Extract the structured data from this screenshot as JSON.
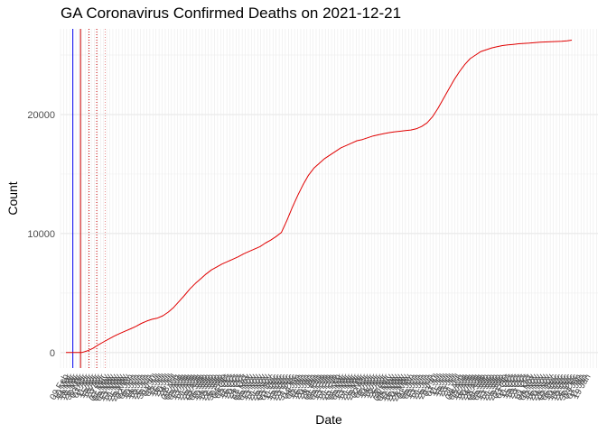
{
  "chart_data": {
    "type": "line",
    "title": "GA Coronavirus Confirmed Deaths on 2021-12-21",
    "xlabel": "Date",
    "ylabel": "Count",
    "x_type": "date",
    "xlim": [
      "2020-02-26",
      "2022-01-24"
    ],
    "ylim": [
      -1300,
      27200
    ],
    "y_ticks": [
      0,
      10000,
      20000
    ],
    "y_tick_labels": [
      "0",
      "10000",
      "20000"
    ],
    "grid": true,
    "legend": "none",
    "background": "#ffffff",
    "colors": {
      "line": "#e00000",
      "vline_solid": "#0000ee",
      "vline_ref": "#cc0000",
      "grid": "#ebebeb",
      "axis_text": "#4d4d4d"
    },
    "vlines": [
      {
        "date": "2020-03-13",
        "color": "#0000ee",
        "style": "solid"
      },
      {
        "date": "2020-03-23",
        "color": "#cc0000",
        "style": "solid"
      },
      {
        "date": "2020-04-03",
        "color": "#cc0000",
        "style": "dotted"
      },
      {
        "date": "2020-04-13",
        "color": "#cc0000",
        "style": "dotted"
      },
      {
        "date": "2020-04-24",
        "color": "#e88888",
        "style": "dotted"
      }
    ],
    "series": [
      {
        "x": [
          "2020-03-04",
          "2020-03-12",
          "2020-03-18",
          "2020-03-25",
          "2020-04-01",
          "2020-04-08",
          "2020-04-15",
          "2020-04-22",
          "2020-04-29",
          "2020-05-06",
          "2020-05-13",
          "2020-05-20",
          "2020-05-27",
          "2020-06-03",
          "2020-06-10",
          "2020-06-17",
          "2020-06-24",
          "2020-07-01",
          "2020-07-08",
          "2020-07-15",
          "2020-07-22",
          "2020-07-29",
          "2020-08-05",
          "2020-08-12",
          "2020-08-19",
          "2020-08-26",
          "2020-09-02",
          "2020-09-09",
          "2020-09-16",
          "2020-09-23",
          "2020-09-30",
          "2020-10-07",
          "2020-10-14",
          "2020-10-21",
          "2020-10-28",
          "2020-11-04",
          "2020-11-11",
          "2020-11-18",
          "2020-11-25",
          "2020-12-02",
          "2020-12-09",
          "2020-12-16",
          "2020-12-23",
          "2020-12-30",
          "2021-01-06",
          "2021-01-13",
          "2021-01-20",
          "2021-01-27",
          "2021-02-03",
          "2021-02-10",
          "2021-02-17",
          "2021-02-24",
          "2021-03-03",
          "2021-03-10",
          "2021-03-17",
          "2021-03-24",
          "2021-03-31",
          "2021-04-07",
          "2021-04-14",
          "2021-04-21",
          "2021-04-28",
          "2021-05-05",
          "2021-05-12",
          "2021-05-19",
          "2021-05-26",
          "2021-06-02",
          "2021-06-09",
          "2021-06-16",
          "2021-06-23",
          "2021-06-30",
          "2021-07-07",
          "2021-07-14",
          "2021-07-21",
          "2021-07-28",
          "2021-08-04",
          "2021-08-11",
          "2021-08-18",
          "2021-08-25",
          "2021-09-01",
          "2021-09-08",
          "2021-09-15",
          "2021-09-22",
          "2021-09-29",
          "2021-10-06",
          "2021-10-13",
          "2021-10-20",
          "2021-10-27",
          "2021-11-03",
          "2021-11-10",
          "2021-11-17",
          "2021-11-24",
          "2021-12-01",
          "2021-12-08",
          "2021-12-15",
          "2021-12-21"
        ],
        "y": [
          0,
          0,
          0,
          10,
          150,
          350,
          650,
          900,
          1150,
          1400,
          1600,
          1800,
          2000,
          2200,
          2450,
          2650,
          2800,
          2900,
          3100,
          3400,
          3800,
          4300,
          4800,
          5350,
          5800,
          6200,
          6600,
          6950,
          7200,
          7450,
          7650,
          7850,
          8050,
          8300,
          8500,
          8700,
          8900,
          9200,
          9450,
          9750,
          10100,
          11100,
          12200,
          13200,
          14100,
          14900,
          15500,
          15900,
          16300,
          16600,
          16900,
          17200,
          17400,
          17600,
          17800,
          17900,
          18050,
          18200,
          18300,
          18400,
          18480,
          18550,
          18600,
          18650,
          18700,
          18800,
          19000,
          19300,
          19800,
          20500,
          21300,
          22100,
          22900,
          23600,
          24200,
          24700,
          25000,
          25300,
          25450,
          25600,
          25700,
          25800,
          25850,
          25900,
          25950,
          25980,
          26000,
          26050,
          26080,
          26100,
          26120,
          26140,
          26160,
          26200,
          26250
        ]
      }
    ],
    "x_tick_labels": [
      "09 Feb",
      "10 Mar",
      "14 Mar",
      "18 Mar",
      "26 Mar",
      "30 Mar",
      "03 Apr",
      "07 Apr",
      "11 Apr",
      "15 Apr",
      "19 Apr",
      "23 Apr",
      "27 Apr",
      "01 May",
      "05 May",
      "09 May",
      "13 May",
      "17 May",
      "21 May",
      "25 May",
      "29 May",
      "02 Jun",
      "06 Jun",
      "10 Jun",
      "14 Jun",
      "18 Jun",
      "22 Jun",
      "26 Jun",
      "30 Jun",
      "04 Jul",
      "08 Jul",
      "12 Jul",
      "16 Jul",
      "20 Jul",
      "24 Jul",
      "28 Jul",
      "01 Aug",
      "05 Aug",
      "09 Aug",
      "13 Aug",
      "17 Aug",
      "21 Aug",
      "25 Aug",
      "29 Aug",
      "02 Sep",
      "06 Sep",
      "10 Sep",
      "14 Sep",
      "18 Sep",
      "22 Sep",
      "26 Sep",
      "30 Sep",
      "04 Oct",
      "08 Oct",
      "12 Oct",
      "16 Oct",
      "20 Oct",
      "24 Oct",
      "28 Oct",
      "01 Nov",
      "05 Nov",
      "09 Nov",
      "13 Nov",
      "17 Nov",
      "21 Nov",
      "25 Nov",
      "29 Nov",
      "03 Dec",
      "07 Dec",
      "11 Dec",
      "15 Dec",
      "19 Dec",
      "23 Dec",
      "27 Dec",
      "31 Dec",
      "04 Jan",
      "08 Jan",
      "12 Jan",
      "16 Jan",
      "20 Jan",
      "24 Jan",
      "28 Jan",
      "01 Feb",
      "05 Feb",
      "09 Feb",
      "13 Feb",
      "17 Feb",
      "21 Feb",
      "25 Feb",
      "01 Mar",
      "05 Mar",
      "09 Mar",
      "13 Mar",
      "17 Mar",
      "21 Mar",
      "25 Mar",
      "29 Mar",
      "02 Apr",
      "06 Apr",
      "10 Apr",
      "14 Apr",
      "18 Apr",
      "22 Apr",
      "26 Apr",
      "30 Apr",
      "04 May",
      "08 May",
      "12 May",
      "16 May",
      "20 May",
      "24 May",
      "28 May",
      "01 Jun",
      "05 Jun",
      "09 Jun",
      "13 Jun",
      "17 Jun",
      "21 Jun",
      "25 Jun",
      "29 Jun",
      "03 Jul",
      "07 Jul",
      "11 Jul",
      "15 Jul",
      "19 Jul",
      "23 Jul",
      "27 Jul",
      "31 Jul",
      "04 Aug",
      "08 Aug",
      "12 Aug",
      "16 Aug",
      "20 Aug",
      "24 Aug",
      "28 Aug",
      "01 Sep",
      "05 Sep",
      "09 Sep",
      "13 Sep",
      "17 Sep",
      "21 Sep",
      "25 Sep",
      "29 Sep",
      "03 Oct",
      "07 Oct",
      "11 Oct",
      "15 Oct",
      "19 Oct",
      "23 Oct",
      "27 Oct",
      "31 Oct",
      "04 Nov",
      "08 Nov",
      "12 Nov",
      "16 Nov",
      "20 Nov",
      "24 Nov",
      "28 Nov",
      "02 Dec",
      "06 Dec",
      "10 Dec",
      "14 Dec",
      "18 Dec",
      "22 Dec",
      "26 Dec",
      "30 Dec",
      "03 Jan",
      "07 Jan",
      "11 Jan",
      "19 Jan"
    ]
  }
}
